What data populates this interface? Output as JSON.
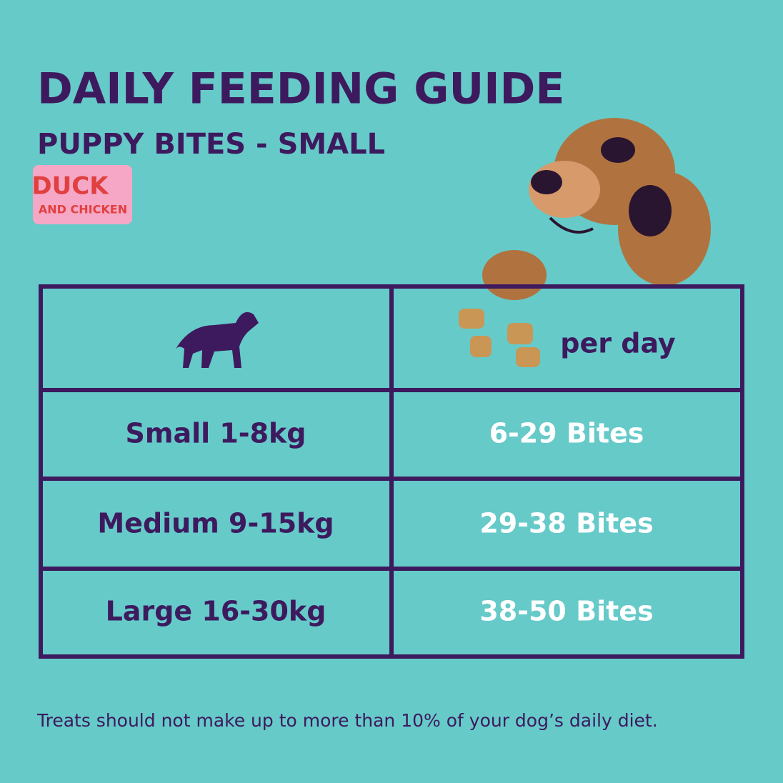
{
  "header": {
    "title": "DAILY FEEDING GUIDE",
    "subtitle": "PUPPY BITES - SMALL"
  },
  "badge": {
    "line1": "DUCK",
    "line2": "AND CHICKEN"
  },
  "table": {
    "header": "per day",
    "rows": [
      [
        "Small 1-8kg",
        "6-29 Bites"
      ],
      [
        "Medium 9-15kg",
        "29-38 Bites"
      ],
      [
        "Large 16-30kg",
        "38-50 Bites"
      ]
    ]
  },
  "footer": {
    "note": "Treats should not make up to more than 10% of your dog’s daily diet."
  }
}
